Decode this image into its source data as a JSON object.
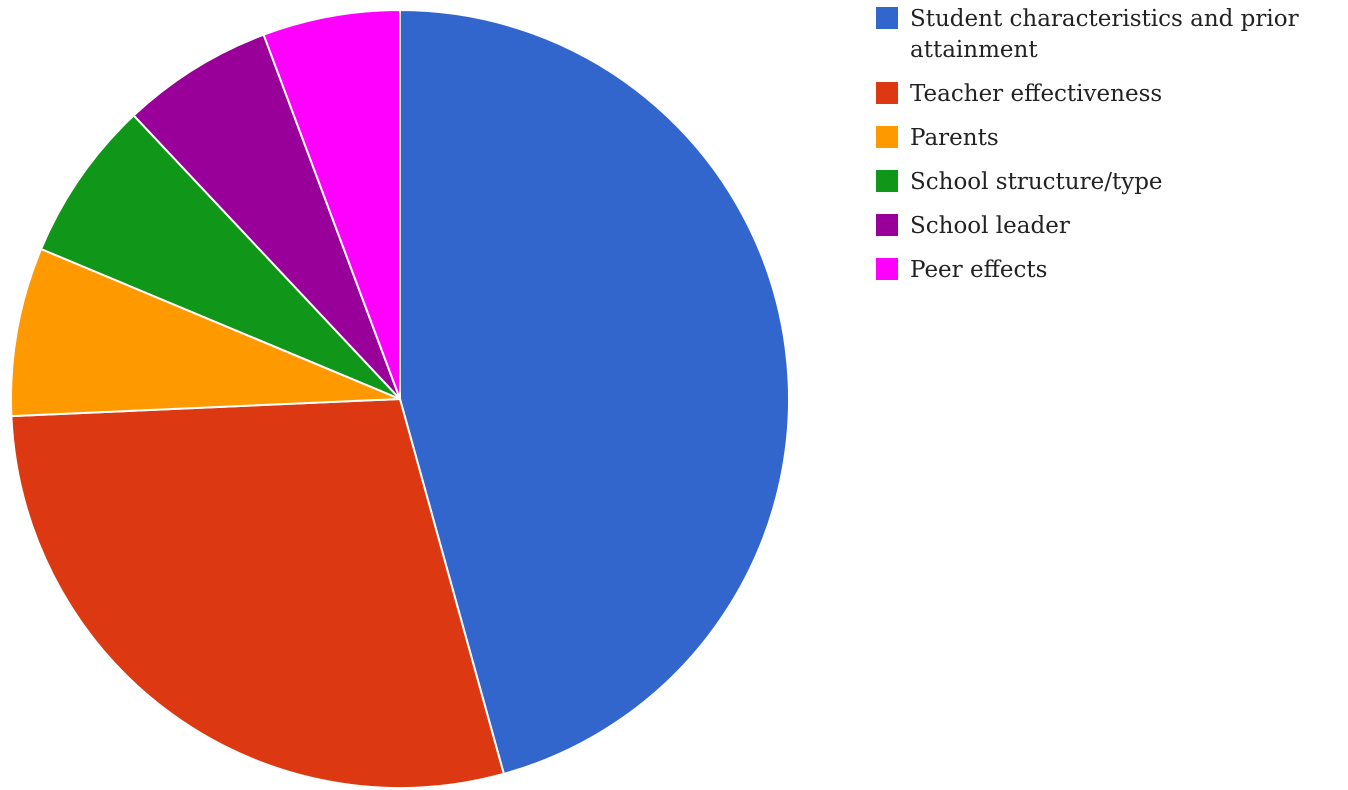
{
  "chart_data": {
    "type": "pie",
    "start_angle": "12 o'clock",
    "direction": "clockwise",
    "legend_position": "right",
    "slices": [
      {
        "label": "Student characteristics and prior attainment",
        "value": 45.7,
        "color": "#3366cc"
      },
      {
        "label": "Teacher effectiveness",
        "value": 28.6,
        "color": "#dc3912"
      },
      {
        "label": "Parents",
        "value": 7.0,
        "color": "#ff9900"
      },
      {
        "label": "School structure/type",
        "value": 6.7,
        "color": "#109618"
      },
      {
        "label": "School leader",
        "value": 6.3,
        "color": "#990099"
      },
      {
        "label": "Peer effects",
        "value": 5.7,
        "color": "#ff00ff"
      }
    ]
  }
}
